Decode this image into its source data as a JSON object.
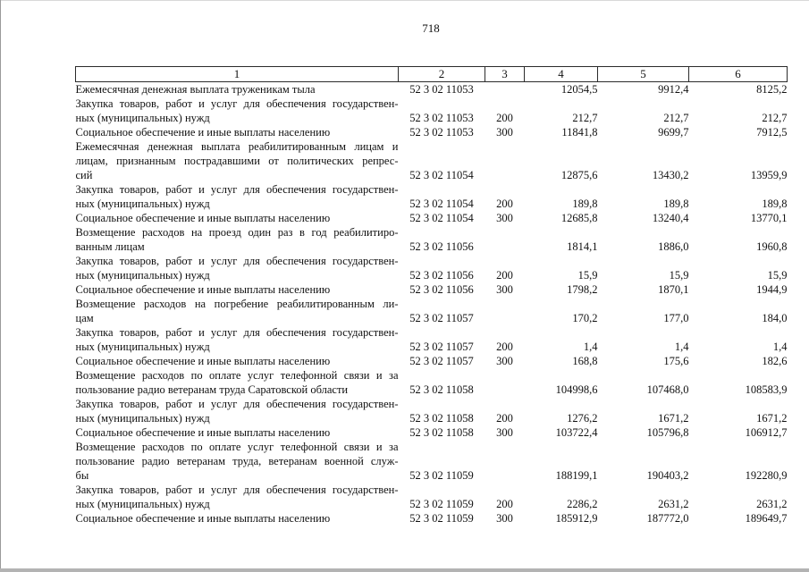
{
  "page": {
    "number": "718"
  },
  "table": {
    "headers": [
      "1",
      "2",
      "3",
      "4",
      "5",
      "6"
    ],
    "rows": [
      {
        "label_lines": [
          "Ежемесячная денежная выплата труженикам тыла"
        ],
        "code": "52 3 02 11053",
        "type": "",
        "values": [
          "12054,5",
          "9912,4",
          "8125,2"
        ]
      },
      {
        "label_lines": [
          "Закупка товаров, работ и услуг для обеспечения государствен-",
          "ных (муниципальных) нужд"
        ],
        "code": "52 3 02 11053",
        "type": "200",
        "values": [
          "212,7",
          "212,7",
          "212,7"
        ]
      },
      {
        "label_lines": [
          "Социальное обеспечение и иные выплаты населению"
        ],
        "code": "52 3 02 11053",
        "type": "300",
        "values": [
          "11841,8",
          "9699,7",
          "7912,5"
        ]
      },
      {
        "label_lines": [
          "Ежемесячная денежная выплата реабилитированным лицам и",
          "лицам, признанным пострадавшими от политических репрес-",
          "сий"
        ],
        "code": "52 3 02 11054",
        "type": "",
        "values": [
          "12875,6",
          "13430,2",
          "13959,9"
        ]
      },
      {
        "label_lines": [
          "Закупка товаров, работ и услуг для обеспечения государствен-",
          "ных (муниципальных) нужд"
        ],
        "code": "52 3 02 11054",
        "type": "200",
        "values": [
          "189,8",
          "189,8",
          "189,8"
        ]
      },
      {
        "label_lines": [
          "Социальное обеспечение и иные выплаты населению"
        ],
        "code": "52 3 02 11054",
        "type": "300",
        "values": [
          "12685,8",
          "13240,4",
          "13770,1"
        ]
      },
      {
        "label_lines": [
          "Возмещение расходов на проезд один раз в год реабилитиро-",
          "ванным лицам"
        ],
        "code": "52 3 02 11056",
        "type": "",
        "values": [
          "1814,1",
          "1886,0",
          "1960,8"
        ]
      },
      {
        "label_lines": [
          "Закупка товаров, работ и услуг для обеспечения государствен-",
          "ных (муниципальных) нужд"
        ],
        "code": "52 3 02 11056",
        "type": "200",
        "values": [
          "15,9",
          "15,9",
          "15,9"
        ]
      },
      {
        "label_lines": [
          "Социальное обеспечение и иные выплаты населению"
        ],
        "code": "52 3 02 11056",
        "type": "300",
        "values": [
          "1798,2",
          "1870,1",
          "1944,9"
        ]
      },
      {
        "label_lines": [
          "Возмещение расходов на погребение реабилитированным ли-",
          "цам"
        ],
        "code": "52 3 02 11057",
        "type": "",
        "values": [
          "170,2",
          "177,0",
          "184,0"
        ]
      },
      {
        "label_lines": [
          "Закупка товаров, работ и услуг для обеспечения государствен-",
          "ных (муниципальных) нужд"
        ],
        "code": "52 3 02 11057",
        "type": "200",
        "values": [
          "1,4",
          "1,4",
          "1,4"
        ]
      },
      {
        "label_lines": [
          "Социальное обеспечение и иные выплаты населению"
        ],
        "code": "52 3 02 11057",
        "type": "300",
        "values": [
          "168,8",
          "175,6",
          "182,6"
        ]
      },
      {
        "label_lines": [
          "Возмещение расходов по оплате услуг телефонной связи и за",
          "пользование радио ветеранам труда Саратовской области"
        ],
        "code": "52 3 02 11058",
        "type": "",
        "values": [
          "104998,6",
          "107468,0",
          "108583,9"
        ]
      },
      {
        "label_lines": [
          "Закупка товаров, работ и услуг для обеспечения государствен-",
          "ных (муниципальных) нужд"
        ],
        "code": "52 3 02 11058",
        "type": "200",
        "values": [
          "1276,2",
          "1671,2",
          "1671,2"
        ]
      },
      {
        "label_lines": [
          "Социальное обеспечение и иные выплаты населению"
        ],
        "code": "52 3 02 11058",
        "type": "300",
        "values": [
          "103722,4",
          "105796,8",
          "106912,7"
        ]
      },
      {
        "label_lines": [
          "Возмещение расходов по оплате услуг телефонной связи и за",
          "пользование радио ветеранам труда, ветеранам военной служ-",
          "бы"
        ],
        "code": "52 3 02 11059",
        "type": "",
        "values": [
          "188199,1",
          "190403,2",
          "192280,9"
        ]
      },
      {
        "label_lines": [
          "Закупка товаров, работ и услуг для обеспечения государствен-",
          "ных (муниципальных) нужд"
        ],
        "code": "52 3 02 11059",
        "type": "200",
        "values": [
          "2286,2",
          "2631,2",
          "2631,2"
        ]
      },
      {
        "label_lines": [
          "Социальное обеспечение и иные выплаты населению"
        ],
        "code": "52 3 02 11059",
        "type": "300",
        "values": [
          "185912,9",
          "187772,0",
          "189649,7"
        ]
      }
    ]
  }
}
